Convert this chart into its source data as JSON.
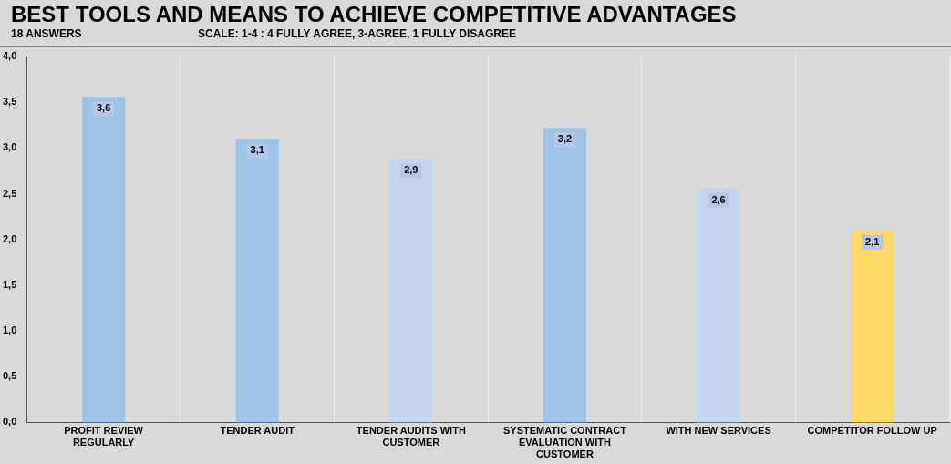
{
  "chart_data": {
    "type": "bar",
    "title": "BEST TOOLS AND MEANS TO ACHIEVE COMPETITIVE ADVANTAGES",
    "subtitle": "18 ANSWERS",
    "annotations": [
      "SCALE: 1-4 : 4 FULLY AGREE, 3-AGREE, 1 FULLY DISAGREE"
    ],
    "categories": [
      "PROFIT REVIEW REGULARLY",
      "TENDER AUDIT",
      "TENDER AUDITS WITH CUSTOMER",
      "SYSTEMATIC CONTRACT EVALUATION WITH CUSTOMER",
      "WITH NEW SERVICES",
      "COMPETITOR FOLLOW UP"
    ],
    "values": [
      3.56,
      3.1,
      2.88,
      3.22,
      2.56,
      2.1
    ],
    "value_labels": [
      "3,6",
      "3,1",
      "2,9",
      "3,2",
      "2,6",
      "2,1"
    ],
    "colors": [
      "#9dc3e6",
      "#9dc3e6",
      "#c5d5ee",
      "#9dc3e6",
      "#c5d5ee",
      "#ffd966"
    ],
    "ylim": [
      0,
      4
    ],
    "yticks": [
      {
        "value": 0,
        "label": "0,0"
      },
      {
        "value": 0.5,
        "label": "0,5"
      },
      {
        "value": 1,
        "label": "1,0"
      },
      {
        "value": 1.5,
        "label": "1,5"
      },
      {
        "value": 2,
        "label": "2,0"
      },
      {
        "value": 2.5,
        "label": "2,5"
      },
      {
        "value": 3,
        "label": "3,0"
      },
      {
        "value": 3.5,
        "label": "3,5"
      },
      {
        "value": 4,
        "label": "4,0"
      }
    ],
    "grid": "x",
    "legend": false
  }
}
